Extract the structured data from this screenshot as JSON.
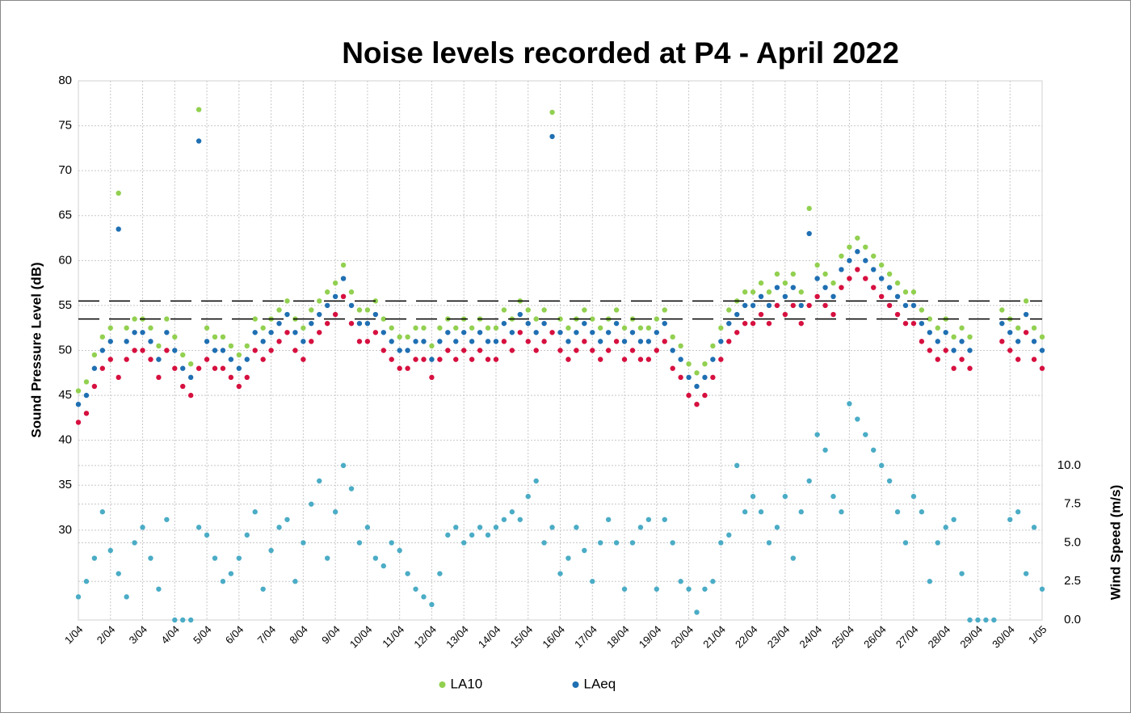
{
  "chart_data": {
    "type": "scatter",
    "title": "Noise levels recorded at P4 - April 2022",
    "y_label": "Sound Pressure Level (dB)",
    "y2_label": "Wind Speed (m/s)",
    "xlim": [
      1,
      31
    ],
    "xticks": [
      {
        "value": 1,
        "label": "1/04"
      },
      {
        "value": 2,
        "label": "2/04"
      },
      {
        "value": 3,
        "label": "3/04"
      },
      {
        "value": 4,
        "label": "4/04"
      },
      {
        "value": 5,
        "label": "5/04"
      },
      {
        "value": 6,
        "label": "6/04"
      },
      {
        "value": 7,
        "label": "7/04"
      },
      {
        "value": 8,
        "label": "8/04"
      },
      {
        "value": 9,
        "label": "9/04"
      },
      {
        "value": 10,
        "label": "10/04"
      },
      {
        "value": 11,
        "label": "11/04"
      },
      {
        "value": 12,
        "label": "12/04"
      },
      {
        "value": 13,
        "label": "13/04"
      },
      {
        "value": 14,
        "label": "14/04"
      },
      {
        "value": 15,
        "label": "15/04"
      },
      {
        "value": 16,
        "label": "16/04"
      },
      {
        "value": 17,
        "label": "17/04"
      },
      {
        "value": 18,
        "label": "18/04"
      },
      {
        "value": 19,
        "label": "19/04"
      },
      {
        "value": 20,
        "label": "20/04"
      },
      {
        "value": 21,
        "label": "21/04"
      },
      {
        "value": 22,
        "label": "22/04"
      },
      {
        "value": 23,
        "label": "23/04"
      },
      {
        "value": 24,
        "label": "24/04"
      },
      {
        "value": 25,
        "label": "25/04"
      },
      {
        "value": 26,
        "label": "26/04"
      },
      {
        "value": 27,
        "label": "27/04"
      },
      {
        "value": 28,
        "label": "28/04"
      },
      {
        "value": 29,
        "label": "29/04"
      },
      {
        "value": 30,
        "label": "30/04"
      },
      {
        "value": 31,
        "label": "1/05"
      }
    ],
    "ylim": [
      20,
      80
    ],
    "yticks": [
      30,
      35,
      40,
      45,
      50,
      55,
      60,
      65,
      70,
      75,
      80
    ],
    "y2lim": [
      0,
      34.9
    ],
    "y2ticks": [
      {
        "value": 0,
        "label": "0.0"
      },
      2.5,
      {
        "value": 5,
        "label": "5.0"
      },
      7.5,
      {
        "value": 10,
        "label": "10.0"
      }
    ],
    "grid": true,
    "legend": "bottom",
    "reference_lines": [
      55.5,
      53.5
    ],
    "x": [
      1,
      1.25,
      1.5,
      1.75,
      2,
      2.25,
      2.5,
      2.75,
      3,
      3.25,
      3.5,
      3.75,
      4,
      4.25,
      4.5,
      4.75,
      5,
      5.25,
      5.5,
      5.75,
      6,
      6.25,
      6.5,
      6.75,
      7,
      7.25,
      7.5,
      7.75,
      8,
      8.25,
      8.5,
      8.75,
      9,
      9.25,
      9.5,
      9.75,
      10,
      10.25,
      10.5,
      10.75,
      11,
      11.25,
      11.5,
      11.75,
      12,
      12.25,
      12.5,
      12.75,
      13,
      13.25,
      13.5,
      13.75,
      14,
      14.25,
      14.5,
      14.75,
      15,
      15.25,
      15.5,
      15.75,
      16,
      16.25,
      16.5,
      16.75,
      17,
      17.25,
      17.5,
      17.75,
      18,
      18.25,
      18.5,
      18.75,
      19,
      19.25,
      19.5,
      19.75,
      20,
      20.25,
      20.5,
      20.75,
      21,
      21.25,
      21.5,
      21.75,
      22,
      22.25,
      22.5,
      22.75,
      23,
      23.25,
      23.5,
      23.75,
      24,
      24.25,
      24.5,
      24.75,
      25,
      25.25,
      25.5,
      25.75,
      26,
      26.25,
      26.5,
      26.75,
      27,
      27.25,
      27.5,
      27.75,
      28,
      28.25,
      28.5,
      28.75,
      29,
      29.25,
      29.5,
      29.75,
      30,
      30.25,
      30.5,
      30.75,
      31
    ],
    "series": [
      {
        "name": "LA10",
        "color": "#92d050",
        "values": [
          45.5,
          46.5,
          49.5,
          51.5,
          52.5,
          67.5,
          52.5,
          53.5,
          53.5,
          52.5,
          50.5,
          53.5,
          51.5,
          49.5,
          48.5,
          76.8,
          52.5,
          51.5,
          51.5,
          50.5,
          49.5,
          50.5,
          53.5,
          52.5,
          53.5,
          54.5,
          55.5,
          53.5,
          52.5,
          54.5,
          55.5,
          56.5,
          57.5,
          59.5,
          56.5,
          54.5,
          54.5,
          55.5,
          53.5,
          52.5,
          51.5,
          51.5,
          52.5,
          52.5,
          50.5,
          52.5,
          53.5,
          52.5,
          53.5,
          52.5,
          53.5,
          52.5,
          52.5,
          54.5,
          53.5,
          55.5,
          54.5,
          53.5,
          54.5,
          76.5,
          53.5,
          52.5,
          53.5,
          54.5,
          53.5,
          52.5,
          53.5,
          54.5,
          52.5,
          53.5,
          52.5,
          52.5,
          53.5,
          54.5,
          51.5,
          50.5,
          48.5,
          47.5,
          48.5,
          50.5,
          52.5,
          54.5,
          55.5,
          56.5,
          56.5,
          57.5,
          56.5,
          58.5,
          57.5,
          58.5,
          56.5,
          65.8,
          59.5,
          58.5,
          57.5,
          60.5,
          61.5,
          62.5,
          61.5,
          60.5,
          59.5,
          58.5,
          57.5,
          56.5,
          56.5,
          54.5,
          53.5,
          52.5,
          53.5,
          51.5,
          52.5,
          51.5,
          null,
          null,
          null,
          54.5,
          53.5,
          52.5,
          55.5,
          52.5,
          51.5
        ]
      },
      {
        "name": "LAeq",
        "color": "#1f6fb2",
        "values": [
          44,
          45,
          48,
          50,
          51,
          63.5,
          51,
          52,
          52,
          51,
          49,
          52,
          50,
          48,
          47,
          73.3,
          51,
          50,
          50,
          49,
          48,
          49,
          52,
          51,
          52,
          53,
          54,
          52,
          51,
          53,
          54,
          55,
          56,
          58,
          55,
          53,
          53,
          54,
          52,
          51,
          50,
          50,
          51,
          51,
          49,
          51,
          52,
          51,
          52,
          51,
          52,
          51,
          51,
          53,
          52,
          54,
          53,
          52,
          53,
          73.8,
          52,
          51,
          52,
          53,
          52,
          51,
          52,
          53,
          51,
          52,
          51,
          51,
          52,
          53,
          50,
          49,
          47,
          46,
          47,
          49,
          51,
          53,
          54,
          55,
          55,
          56,
          55,
          57,
          56,
          57,
          55,
          63,
          58,
          57,
          56,
          59,
          60,
          61,
          60,
          59,
          58,
          57,
          56,
          55,
          55,
          53,
          52,
          51,
          52,
          50,
          51,
          50,
          null,
          null,
          null,
          53,
          52,
          51,
          54,
          51,
          50
        ]
      },
      {
        "color": "#d6103f",
        "values": [
          42,
          43,
          46,
          48,
          49,
          47,
          49,
          50,
          50,
          49,
          47,
          50,
          48,
          46,
          45,
          48,
          49,
          48,
          48,
          47,
          46,
          47,
          50,
          49,
          50,
          51,
          52,
          50,
          49,
          51,
          52,
          53,
          54,
          56,
          53,
          51,
          51,
          52,
          50,
          49,
          48,
          48,
          49,
          49,
          47,
          49,
          50,
          49,
          50,
          49,
          50,
          49,
          49,
          51,
          50,
          52,
          51,
          50,
          51,
          52,
          50,
          49,
          50,
          51,
          50,
          49,
          50,
          51,
          49,
          50,
          49,
          49,
          50,
          51,
          48,
          47,
          45,
          44,
          45,
          47,
          49,
          51,
          52,
          53,
          53,
          54,
          53,
          55,
          54,
          55,
          53,
          55,
          56,
          55,
          54,
          57,
          58,
          59,
          58,
          57,
          56,
          55,
          54,
          53,
          53,
          51,
          50,
          49,
          50,
          48,
          49,
          48,
          null,
          null,
          null,
          51,
          50,
          49,
          52,
          49,
          48
        ]
      },
      {
        "color": "#4bacc6",
        "axis": "y2",
        "values": [
          1.5,
          2.5,
          4,
          7,
          4.5,
          3,
          1.5,
          5,
          6,
          4,
          2,
          6.5,
          0,
          0,
          0,
          6,
          5.5,
          4,
          2.5,
          3,
          4,
          5.5,
          7,
          2,
          4.5,
          6,
          6.5,
          2.5,
          5,
          7.5,
          9,
          4,
          7,
          10,
          8.5,
          5,
          6,
          4,
          3.5,
          5,
          4.5,
          3,
          2,
          1.5,
          1,
          3,
          5.5,
          6,
          5,
          5.5,
          6,
          5.5,
          6,
          6.5,
          7,
          6.5,
          8,
          9,
          5,
          6,
          3,
          4,
          6,
          4.5,
          2.5,
          5,
          6.5,
          5,
          2,
          5,
          6,
          6.5,
          2,
          6.5,
          5,
          2.5,
          2,
          0.5,
          2,
          2.5,
          5,
          5.5,
          10,
          7,
          8,
          7,
          5,
          6,
          8,
          4,
          7,
          9,
          12,
          11,
          8,
          7,
          14,
          13,
          12,
          11,
          10,
          9,
          7,
          5,
          8,
          7,
          2.5,
          5,
          6,
          6.5,
          3,
          0,
          0,
          0,
          0,
          null,
          6.5,
          7,
          3,
          6,
          2
        ]
      }
    ]
  }
}
